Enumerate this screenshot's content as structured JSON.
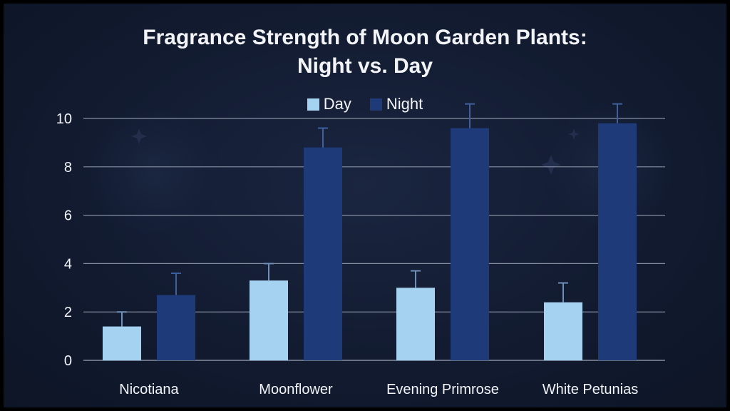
{
  "chart_data": {
    "type": "bar",
    "title": [
      "Fragrance Strength of Moon Garden Plants:",
      "Night vs. Day"
    ],
    "xlabel": "",
    "ylabel": "",
    "categories": [
      "Nicotiana",
      "Moonflower",
      "Evening Primrose",
      "White Petunias"
    ],
    "series": [
      {
        "name": "Day",
        "values": [
          1.4,
          3.3,
          3.0,
          2.4
        ],
        "errors": [
          0.6,
          0.7,
          0.7,
          0.8
        ],
        "color": "#a6d2f2"
      },
      {
        "name": "Night",
        "values": [
          2.7,
          8.8,
          9.6,
          9.8
        ],
        "errors": [
          0.9,
          0.8,
          1.0,
          0.8
        ],
        "color": "#1e3a78"
      }
    ],
    "ylim": [
      0,
      10
    ],
    "yticks": [
      0,
      2,
      4,
      6,
      8,
      10
    ],
    "grid": true,
    "legend_position": "top-center"
  },
  "colors": {
    "background": "#131c31",
    "grid": "#9aa3b5",
    "text": "#f2f4f8"
  }
}
